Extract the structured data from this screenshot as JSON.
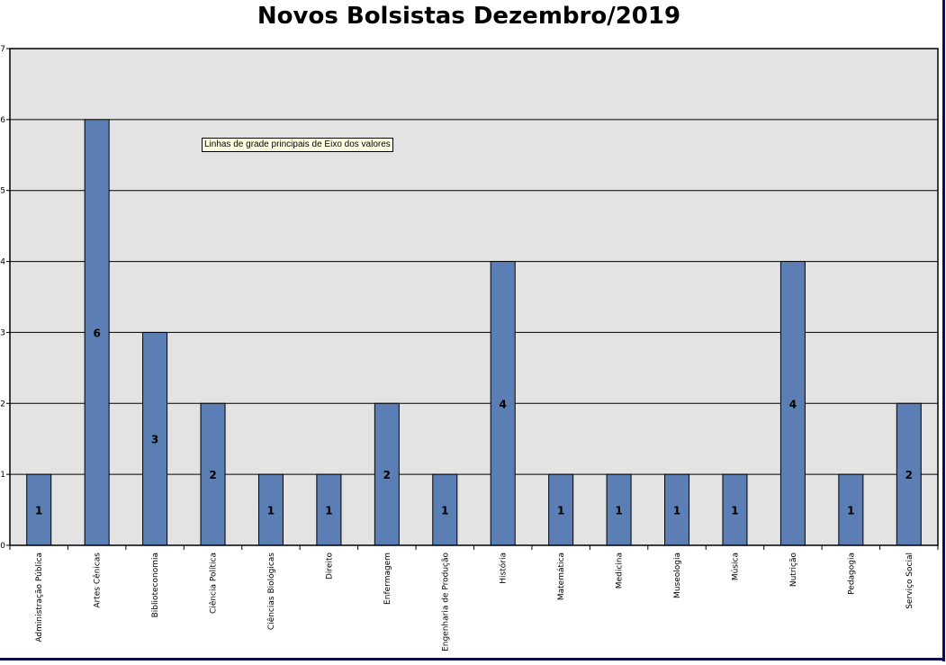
{
  "chart_data": {
    "type": "bar",
    "title": "Novos Bolsistas Dezembro/2019",
    "categories": [
      "Administração Pública",
      "Artes Cênicas",
      "Biblioteconomia",
      "Ciência Política",
      "Ciências Biológicas",
      "Direito",
      "Enfermagem",
      "Engenharia de Produção",
      "História",
      "Matemática",
      "Medicina",
      "Museologia",
      "Música",
      "Nutrição",
      "Pedagogia",
      "Serviço Social"
    ],
    "values": [
      1,
      6,
      3,
      2,
      1,
      1,
      2,
      1,
      4,
      1,
      1,
      1,
      1,
      4,
      1,
      2
    ],
    "ylim": [
      0,
      7
    ],
    "yticks": [
      0,
      1,
      2,
      3,
      4,
      5,
      6,
      7
    ],
    "grid": true,
    "legend": "none",
    "data_labels": true,
    "colors": {
      "bar": "#5b7fb4",
      "plot_bg": "#e3e3e3",
      "frame": "#0a0a6e"
    }
  },
  "tooltip": "Linhas de grade principais de Eixo dos valores"
}
